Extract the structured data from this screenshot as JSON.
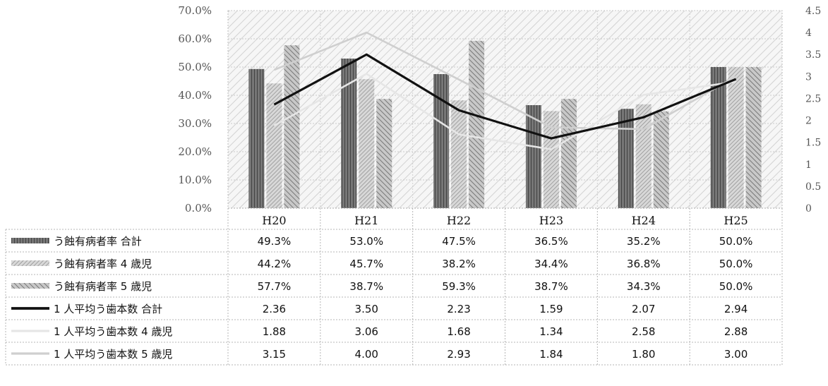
{
  "chart_data": {
    "type": "bar",
    "categories": [
      "H20",
      "H21",
      "H22",
      "H23",
      "H24",
      "H25"
    ],
    "y_left": {
      "min": 0,
      "max": 70,
      "step": 10,
      "tick_labels": [
        "0.0%",
        "10.0%",
        "20.0%",
        "30.0%",
        "40.0%",
        "50.0%",
        "60.0%",
        "70.0%"
      ]
    },
    "y_right": {
      "min": 0,
      "max": 4.5,
      "step": 0.5,
      "tick_labels": [
        "0",
        "0.5",
        "1",
        "1.5",
        "2",
        "2.5",
        "3",
        "3.5",
        "4",
        "4.5"
      ]
    },
    "grid": true,
    "series": [
      {
        "name": "う蝕有病者率 合計",
        "kind": "bar",
        "axis": "left",
        "values": [
          49.3,
          53.0,
          47.5,
          36.5,
          35.2,
          50.0
        ],
        "labels": [
          "49.3%",
          "53.0%",
          "47.5%",
          "36.5%",
          "35.2%",
          "50.0%"
        ],
        "color": "#5a5a5a"
      },
      {
        "name": "う蝕有病者率 4 歳児",
        "kind": "bar",
        "axis": "left",
        "values": [
          44.2,
          45.7,
          38.2,
          34.4,
          36.8,
          50.0
        ],
        "labels": [
          "44.2%",
          "45.7%",
          "38.2%",
          "34.4%",
          "36.8%",
          "50.0%"
        ],
        "color": "#9a9a9a"
      },
      {
        "name": "う蝕有病者率 5 歳児",
        "kind": "bar",
        "axis": "left",
        "values": [
          57.7,
          38.7,
          59.3,
          38.7,
          34.3,
          50.0
        ],
        "labels": [
          "57.7%",
          "38.7%",
          "59.3%",
          "38.7%",
          "34.3%",
          "50.0%"
        ],
        "color": "#7c7c7c"
      },
      {
        "name": "1 人平均う歯本数 合計",
        "kind": "line",
        "axis": "right",
        "values": [
          2.36,
          3.5,
          2.23,
          1.59,
          2.07,
          2.94
        ],
        "labels": [
          "2.36",
          "3.50",
          "2.23",
          "1.59",
          "2.07",
          "2.94"
        ],
        "color": "#111111"
      },
      {
        "name": "1 人平均う歯本数 4 歳児",
        "kind": "line",
        "axis": "right",
        "values": [
          1.88,
          3.06,
          1.68,
          1.34,
          2.58,
          2.88
        ],
        "labels": [
          "1.88",
          "3.06",
          "1.68",
          "1.34",
          "2.58",
          "2.88"
        ],
        "color": "#dcdcdc"
      },
      {
        "name": "1 人平均う歯本数 5 歳児",
        "kind": "line",
        "axis": "right",
        "values": [
          3.15,
          4.0,
          2.93,
          1.84,
          1.8,
          3.0
        ],
        "labels": [
          "3.15",
          "4.00",
          "2.93",
          "1.84",
          "1.80",
          "3.00"
        ],
        "color": "#c4c4c4"
      }
    ]
  }
}
